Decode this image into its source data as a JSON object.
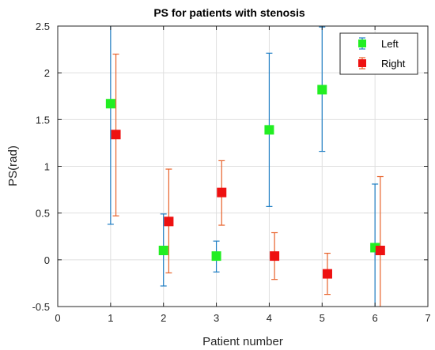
{
  "chart_data": {
    "type": "scatter",
    "title": "PS for patients with stenosis",
    "xlabel": "Patient number",
    "ylabel": "PS(rad)",
    "xlim": [
      0,
      7
    ],
    "ylim": [
      -0.5,
      2.5
    ],
    "x_ticks": [
      "0",
      "1",
      "2",
      "3",
      "4",
      "5",
      "6",
      "7"
    ],
    "y_ticks": [
      "-0.5",
      "0",
      "0.5",
      "1",
      "1.5",
      "2",
      "2.5"
    ],
    "grid": true,
    "legend_position": "top-right",
    "series": [
      {
        "name": "Left",
        "marker_color": "#22ee22",
        "errorbar_color": "#1f7ec4",
        "points": [
          {
            "x": 1,
            "y": 1.67,
            "lower": 0.38,
            "upper": 2.5
          },
          {
            "x": 2,
            "y": 0.1,
            "lower": -0.28,
            "upper": 0.49
          },
          {
            "x": 3,
            "y": 0.04,
            "lower": -0.13,
            "upper": 0.2
          },
          {
            "x": 4,
            "y": 1.39,
            "lower": 0.57,
            "upper": 2.21
          },
          {
            "x": 5,
            "y": 1.82,
            "lower": 1.16,
            "upper": 2.49
          },
          {
            "x": 6,
            "y": 0.13,
            "lower": -0.5,
            "upper": 0.81
          }
        ]
      },
      {
        "name": "Right",
        "marker_color": "#ee1111",
        "errorbar_color": "#e8622a",
        "points": [
          {
            "x": 1.1,
            "y": 1.34,
            "lower": 0.47,
            "upper": 2.2
          },
          {
            "x": 2.1,
            "y": 0.41,
            "lower": -0.14,
            "upper": 0.97
          },
          {
            "x": 3.1,
            "y": 0.72,
            "lower": 0.37,
            "upper": 1.06
          },
          {
            "x": 4.1,
            "y": 0.04,
            "lower": -0.21,
            "upper": 0.29
          },
          {
            "x": 5.1,
            "y": -0.15,
            "lower": -0.37,
            "upper": 0.07
          },
          {
            "x": 6.1,
            "y": 0.1,
            "lower": -0.5,
            "upper": 0.89
          }
        ]
      }
    ]
  }
}
